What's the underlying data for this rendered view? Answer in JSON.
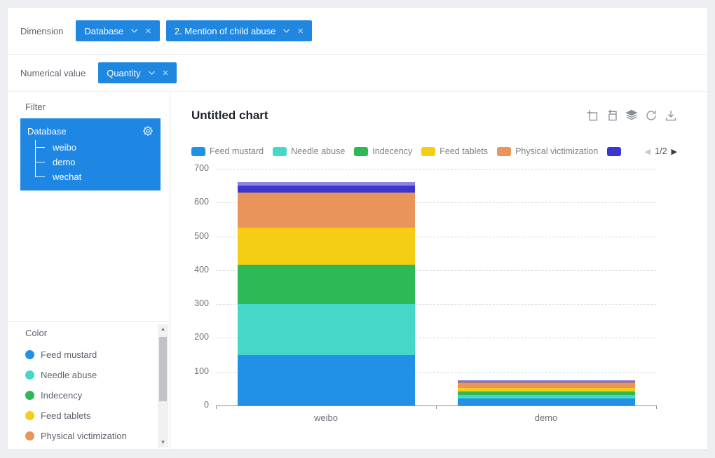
{
  "dimension_row": {
    "label": "Dimension",
    "tags": [
      {
        "label": "Database"
      },
      {
        "label": "2. Mention of child abuse"
      }
    ]
  },
  "measure_row": {
    "label": "Numerical value",
    "tags": [
      {
        "label": "Quantity"
      }
    ]
  },
  "filter_panel": {
    "title": "Filter",
    "root": "Database",
    "children": [
      "weibo",
      "demo",
      "wechat"
    ],
    "box_color": "#1E87E4"
  },
  "color_panel": {
    "title": "Color",
    "items": [
      {
        "label": "Feed mustard",
        "color": "#2191E8"
      },
      {
        "label": "Needle abuse",
        "color": "#45D8C9"
      },
      {
        "label": "Indecency",
        "color": "#2EB957"
      },
      {
        "label": "Feed tablets",
        "color": "#F6CD15"
      },
      {
        "label": "Physical victimization",
        "color": "#E9945B"
      }
    ]
  },
  "chart": {
    "title": "Untitled chart",
    "legend": {
      "visible_labels": 5,
      "extra_swatch_color": "#3B36D1",
      "page_label": "1/2",
      "prev_glyph": "◀",
      "next_glyph": "▶"
    }
  },
  "ui": {
    "accent": "#1F87E0",
    "close_glyph": "×",
    "scroll_up_glyph": "▲",
    "scroll_down_glyph": "▼"
  },
  "chart_data": {
    "type": "bar",
    "stacked": true,
    "title": "Untitled chart",
    "categories": [
      "weibo",
      "demo"
    ],
    "series": [
      {
        "name": "Feed mustard",
        "color": "#2191E8",
        "values": [
          150,
          21
        ]
      },
      {
        "name": "Needle abuse",
        "color": "#45D8C9",
        "values": [
          150,
          10
        ]
      },
      {
        "name": "Indecency",
        "color": "#2EB957",
        "values": [
          117,
          10
        ]
      },
      {
        "name": "Feed tablets",
        "color": "#F6CD15",
        "values": [
          110,
          10
        ]
      },
      {
        "name": "Physical victimization",
        "color": "#E9945B",
        "values": [
          102,
          18
        ]
      },
      {
        "name": "",
        "color": "#3B36D1",
        "values": [
          21,
          2
        ]
      },
      {
        "name": "",
        "color": "#8B85DB",
        "values": [
          10,
          4
        ]
      }
    ],
    "xlabel": "",
    "ylabel": "",
    "ylim": [
      0,
      700
    ],
    "yticks": [
      0,
      100,
      200,
      300,
      400,
      500,
      600,
      700
    ],
    "grid": "horizontal-dashed",
    "legend_position": "top"
  }
}
